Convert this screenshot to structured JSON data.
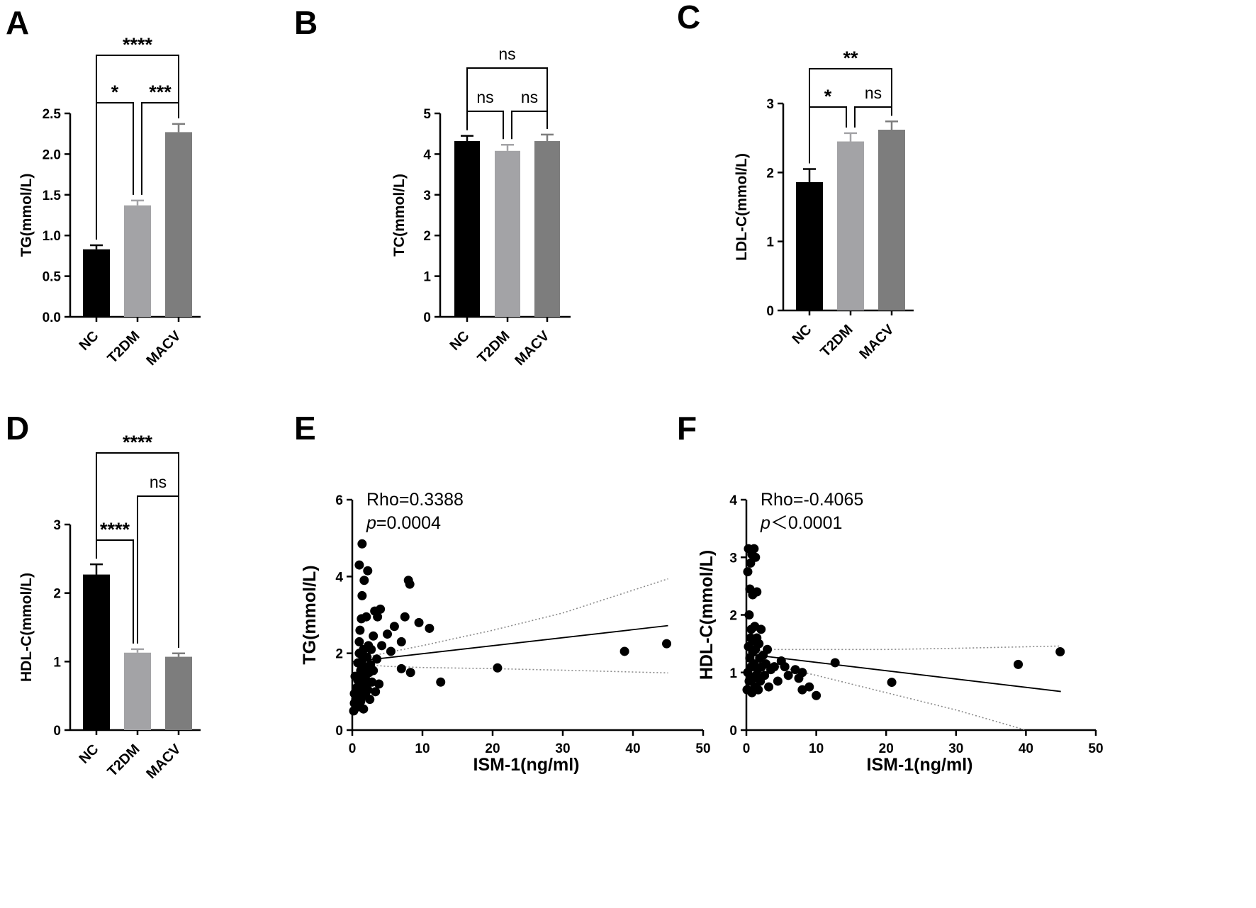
{
  "figure": {
    "background": "#ffffff",
    "bar_colors": {
      "NC": "#000000",
      "T2DM": "#a3a3a6",
      "MACV": "#7d7d7d"
    },
    "error_colors": {
      "NC": "#000000",
      "T2DM": "#a3a3a6",
      "MACV": "#7d7d7d"
    },
    "scatter_point_color": "#000000",
    "fit_line_color": "#000000",
    "ci_line_color": "#8a8a8a"
  },
  "chart_data": [
    {
      "id": "A",
      "panel_label": "A",
      "type": "bar",
      "categories": [
        "NC",
        "T2DM",
        "MACV"
      ],
      "values": [
        0.83,
        1.37,
        2.27
      ],
      "errors": [
        0.05,
        0.06,
        0.1
      ],
      "ylabel": "TG(mmol/L)",
      "ylim": [
        0,
        2.5
      ],
      "yticks": [
        "0.0",
        "0.5",
        "1.0",
        "1.5",
        "2.0",
        "2.5"
      ],
      "comparisons": [
        {
          "from": 0,
          "to": 1,
          "label": "*",
          "level": 0
        },
        {
          "from": 1,
          "to": 2,
          "label": "***",
          "level": 0
        },
        {
          "from": 0,
          "to": 2,
          "label": "****",
          "level": 1
        }
      ]
    },
    {
      "id": "B",
      "panel_label": "B",
      "type": "bar",
      "categories": [
        "NC",
        "T2DM",
        "MACV"
      ],
      "values": [
        4.32,
        4.08,
        4.32
      ],
      "errors": [
        0.13,
        0.15,
        0.16
      ],
      "ylabel": "TC(mmol/L)",
      "ylim": [
        0,
        5
      ],
      "yticks": [
        "0",
        "1",
        "2",
        "3",
        "4",
        "5"
      ],
      "comparisons": [
        {
          "from": 0,
          "to": 1,
          "label": "ns",
          "level": 0
        },
        {
          "from": 1,
          "to": 2,
          "label": "ns",
          "level": 0
        },
        {
          "from": 0,
          "to": 2,
          "label": "ns",
          "level": 1
        }
      ]
    },
    {
      "id": "C",
      "panel_label": "C",
      "type": "bar",
      "categories": [
        "NC",
        "T2DM",
        "MACV"
      ],
      "values": [
        1.86,
        2.45,
        2.62
      ],
      "errors": [
        0.19,
        0.12,
        0.12
      ],
      "ylabel": "LDL-C(mmol/L)",
      "ylim": [
        0,
        3
      ],
      "yticks": [
        "0",
        "1",
        "2",
        "3"
      ],
      "comparisons": [
        {
          "from": 0,
          "to": 1,
          "label": "*",
          "level": 0
        },
        {
          "from": 1,
          "to": 2,
          "label": "ns",
          "level": 0
        },
        {
          "from": 0,
          "to": 2,
          "label": "**",
          "level": 1
        }
      ]
    },
    {
      "id": "D",
      "panel_label": "D",
      "type": "bar",
      "categories": [
        "NC",
        "T2DM",
        "MACV"
      ],
      "values": [
        2.27,
        1.13,
        1.07
      ],
      "errors": [
        0.15,
        0.05,
        0.05
      ],
      "ylabel": "HDL-C(mmol/L)",
      "ylim": [
        0,
        3
      ],
      "yticks": [
        "0",
        "1",
        "2",
        "3"
      ],
      "comparisons": [
        {
          "from": 0,
          "to": 1,
          "label": "****",
          "level": 0
        },
        {
          "from": 1,
          "to": 2,
          "label": "ns",
          "level": 1
        },
        {
          "from": 0,
          "to": 2,
          "label": "****",
          "level": 2
        }
      ]
    },
    {
      "id": "E",
      "panel_label": "E",
      "type": "scatter",
      "xlabel": "ISM-1(ng/ml)",
      "ylabel": "TG(mmol/L)",
      "xlim": [
        0,
        50
      ],
      "ylim": [
        0,
        6
      ],
      "xticks": [
        "0",
        "10",
        "20",
        "30",
        "40",
        "50"
      ],
      "yticks": [
        "0",
        "2",
        "4",
        "6"
      ],
      "stat_rho": "Rho=0.3388",
      "stat_p_symbol": "p",
      "stat_p_value": "=0.0004",
      "fit": {
        "x": [
          0,
          45
        ],
        "y": [
          1.78,
          2.72
        ]
      },
      "ci_upper": {
        "x": [
          0,
          2,
          5,
          10,
          20,
          30,
          45
        ],
        "y": [
          1.78,
          1.9,
          2.02,
          2.2,
          2.6,
          3.05,
          3.94
        ]
      },
      "ci_lower": {
        "x": [
          0,
          2,
          5,
          10,
          20,
          30,
          45
        ],
        "y": [
          1.78,
          1.7,
          1.66,
          1.63,
          1.6,
          1.56,
          1.49
        ]
      },
      "points": [
        [
          0.2,
          0.5
        ],
        [
          0.3,
          0.7
        ],
        [
          0.3,
          0.95
        ],
        [
          0.4,
          1.4
        ],
        [
          0.5,
          0.8
        ],
        [
          0.6,
          1.1
        ],
        [
          0.7,
          0.6
        ],
        [
          0.8,
          1.3
        ],
        [
          0.8,
          1.75
        ],
        [
          0.9,
          0.9
        ],
        [
          1.0,
          2.0
        ],
        [
          1.0,
          2.3
        ],
        [
          1.0,
          4.3
        ],
        [
          1.1,
          1.2
        ],
        [
          1.1,
          2.6
        ],
        [
          1.2,
          0.75
        ],
        [
          1.2,
          1.55
        ],
        [
          1.3,
          1.0
        ],
        [
          1.3,
          2.9
        ],
        [
          1.4,
          3.5
        ],
        [
          1.4,
          4.85
        ],
        [
          1.5,
          1.45
        ],
        [
          1.5,
          1.85
        ],
        [
          1.6,
          0.55
        ],
        [
          1.6,
          2.1
        ],
        [
          1.7,
          1.15
        ],
        [
          1.7,
          3.9
        ],
        [
          1.8,
          1.65
        ],
        [
          1.9,
          0.9
        ],
        [
          2.0,
          2.95
        ],
        [
          2.0,
          1.3
        ],
        [
          2.1,
          1.9
        ],
        [
          2.2,
          4.15
        ],
        [
          2.2,
          1.05
        ],
        [
          2.3,
          2.2
        ],
        [
          2.4,
          1.5
        ],
        [
          2.5,
          0.8
        ],
        [
          2.6,
          1.7
        ],
        [
          2.7,
          2.1
        ],
        [
          2.8,
          1.25
        ],
        [
          3.0,
          1.55
        ],
        [
          3.0,
          2.45
        ],
        [
          3.2,
          3.1
        ],
        [
          3.3,
          1.0
        ],
        [
          3.5,
          1.85
        ],
        [
          3.6,
          2.95
        ],
        [
          3.8,
          1.2
        ],
        [
          4.0,
          3.15
        ],
        [
          4.2,
          2.2
        ],
        [
          5.0,
          2.5
        ],
        [
          5.5,
          2.05
        ],
        [
          6.0,
          2.7
        ],
        [
          7.0,
          2.3
        ],
        [
          7.0,
          1.6
        ],
        [
          7.5,
          2.95
        ],
        [
          8.0,
          3.9
        ],
        [
          8.2,
          3.8
        ],
        [
          8.3,
          1.5
        ],
        [
          9.5,
          2.8
        ],
        [
          11.0,
          2.65
        ],
        [
          12.6,
          1.25
        ],
        [
          20.7,
          1.62
        ],
        [
          38.8,
          2.05
        ],
        [
          44.8,
          2.25
        ]
      ]
    },
    {
      "id": "F",
      "panel_label": "F",
      "type": "scatter",
      "xlabel": "ISM-1(ng/ml)",
      "ylabel": "HDL-C(mmol/L)",
      "xlim": [
        0,
        50
      ],
      "ylim": [
        0,
        4
      ],
      "xticks": [
        "0",
        "10",
        "20",
        "30",
        "40",
        "50"
      ],
      "yticks": [
        "0",
        "1",
        "2",
        "3",
        "4"
      ],
      "stat_rho": "Rho=-0.4065",
      "stat_p_symbol": "p",
      "stat_p_value": "＜0.0001",
      "fit": {
        "x": [
          0,
          45
        ],
        "y": [
          1.32,
          0.67
        ]
      },
      "ci_upper": {
        "x": [
          0,
          3,
          10,
          20,
          30,
          45
        ],
        "y": [
          1.32,
          1.4,
          1.4,
          1.4,
          1.42,
          1.46
        ]
      },
      "ci_lower": {
        "x": [
          0,
          3,
          10,
          20,
          30,
          40
        ],
        "y": [
          1.32,
          1.15,
          0.95,
          0.65,
          0.35,
          0.0
        ]
      },
      "points": [
        [
          0.1,
          0.7
        ],
        [
          0.2,
          1.0
        ],
        [
          0.2,
          2.75
        ],
        [
          0.3,
          1.45
        ],
        [
          0.3,
          3.15
        ],
        [
          0.4,
          0.85
        ],
        [
          0.4,
          2.0
        ],
        [
          0.5,
          1.25
        ],
        [
          0.5,
          2.45
        ],
        [
          0.6,
          1.6
        ],
        [
          0.6,
          2.9
        ],
        [
          0.7,
          1.75
        ],
        [
          0.7,
          1.1
        ],
        [
          0.8,
          3.05
        ],
        [
          0.8,
          0.65
        ],
        [
          0.9,
          1.35
        ],
        [
          0.9,
          2.35
        ],
        [
          1.0,
          0.9
        ],
        [
          1.0,
          1.55
        ],
        [
          1.1,
          3.15
        ],
        [
          1.1,
          1.15
        ],
        [
          1.2,
          0.75
        ],
        [
          1.2,
          1.8
        ],
        [
          1.3,
          1.4
        ],
        [
          1.3,
          3.0
        ],
        [
          1.4,
          0.95
        ],
        [
          1.5,
          1.6
        ],
        [
          1.5,
          2.4
        ],
        [
          1.6,
          1.05
        ],
        [
          1.7,
          0.7
        ],
        [
          1.8,
          1.5
        ],
        [
          1.9,
          1.25
        ],
        [
          2.0,
          0.85
        ],
        [
          2.1,
          1.75
        ],
        [
          2.2,
          1.1
        ],
        [
          2.4,
          1.3
        ],
        [
          2.6,
          0.95
        ],
        [
          2.8,
          1.15
        ],
        [
          3.0,
          1.4
        ],
        [
          3.2,
          0.75
        ],
        [
          3.5,
          1.05
        ],
        [
          4.0,
          1.1
        ],
        [
          4.5,
          0.85
        ],
        [
          5.0,
          1.2
        ],
        [
          5.5,
          1.1
        ],
        [
          6.0,
          0.95
        ],
        [
          7.0,
          1.05
        ],
        [
          7.5,
          0.9
        ],
        [
          8.0,
          1.0
        ],
        [
          8.0,
          0.7
        ],
        [
          9.0,
          0.75
        ],
        [
          10.0,
          0.6
        ],
        [
          12.7,
          1.17
        ],
        [
          20.8,
          0.83
        ],
        [
          38.9,
          1.14
        ],
        [
          44.9,
          1.36
        ]
      ]
    }
  ]
}
